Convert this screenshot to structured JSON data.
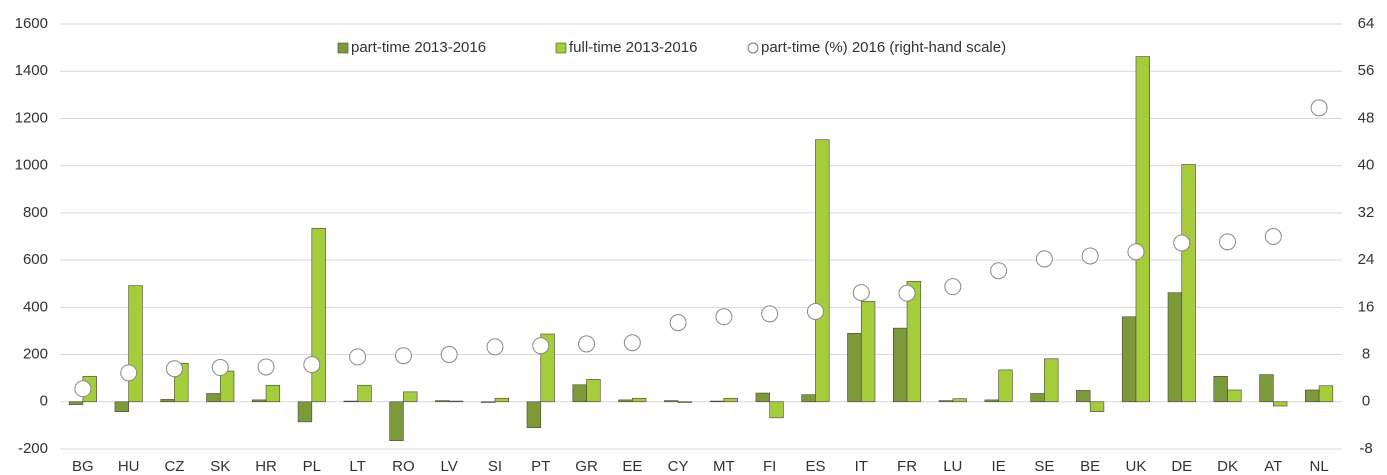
{
  "chart_data": {
    "type": "bar",
    "categories": [
      "BG",
      "HU",
      "CZ",
      "SK",
      "HR",
      "PL",
      "LT",
      "RO",
      "LV",
      "SI",
      "PT",
      "GR",
      "EE",
      "CY",
      "MT",
      "FI",
      "ES",
      "IT",
      "FR",
      "LU",
      "IE",
      "SE",
      "BE",
      "UK",
      "DE",
      "DK",
      "AT",
      "NL"
    ],
    "series": [
      {
        "name": "part-time 2013-2016",
        "color": "#7d9a3b",
        "type": "bar",
        "values": [
          -12,
          -42,
          10,
          35,
          8,
          -85,
          3,
          -165,
          5,
          -3,
          -110,
          72,
          8,
          5,
          3,
          37,
          30,
          290,
          312,
          5,
          8,
          35,
          48,
          360,
          462,
          108,
          115,
          50
        ]
      },
      {
        "name": "full-time 2013-2016",
        "color": "#a5cc3a",
        "type": "bar",
        "values": [
          108,
          492,
          163,
          130,
          70,
          735,
          70,
          42,
          3,
          15,
          287,
          95,
          15,
          -3,
          15,
          -68,
          1110,
          425,
          510,
          13,
          135,
          182,
          -42,
          1462,
          1005,
          50,
          -18,
          68
        ]
      },
      {
        "name": "part-time (%) 2016 (right-hand scale)",
        "color": "#ffffff",
        "type": "scatter",
        "axis": "y2",
        "values": [
          2.2,
          4.9,
          5.6,
          5.8,
          5.9,
          6.3,
          7.6,
          7.8,
          8.0,
          9.3,
          9.5,
          9.8,
          10.0,
          13.4,
          14.4,
          14.9,
          15.3,
          18.5,
          18.4,
          19.5,
          22.2,
          24.2,
          24.7,
          25.4,
          26.9,
          27.1,
          28.0,
          49.8
        ]
      }
    ],
    "ylim": [
      -200,
      1600
    ],
    "yticks": [
      -200,
      0,
      200,
      400,
      600,
      800,
      1000,
      1200,
      1400,
      1600
    ],
    "y2lim": [
      -8,
      64
    ],
    "y2ticks": [
      -8,
      0,
      8,
      16,
      24,
      32,
      40,
      48,
      56,
      64
    ],
    "grid": true,
    "legend": "top"
  }
}
